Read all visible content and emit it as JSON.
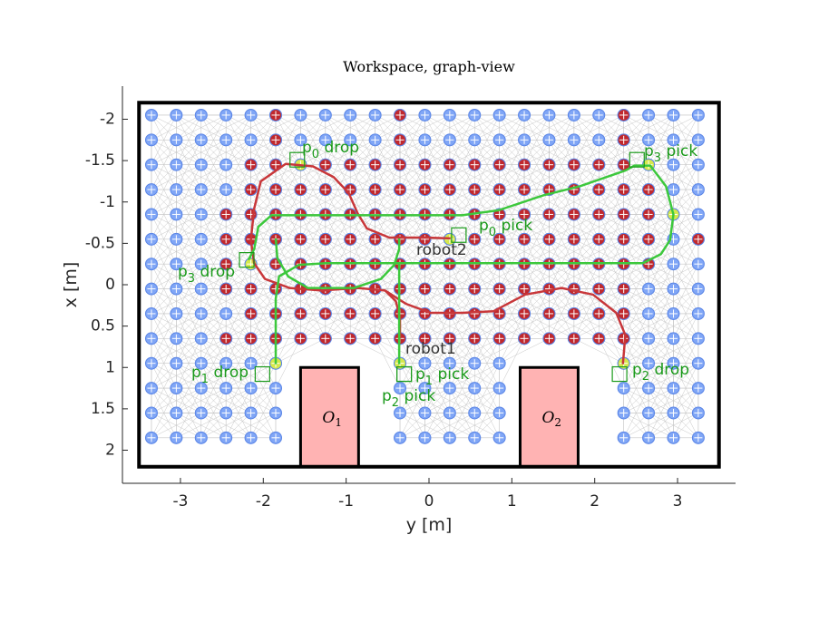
{
  "chart_data": {
    "type": "graph-map",
    "title": "Workspace, graph-view",
    "x_label": "y [m]",
    "y_label": "x [m]",
    "xlim": [
      -3.7,
      3.7
    ],
    "ylim": [
      -2.4,
      2.4
    ],
    "y_reversed": true,
    "xticks": [
      -3,
      -2,
      -1,
      0,
      1,
      2,
      3
    ],
    "yticks": [
      -2,
      -1.5,
      -1,
      -0.5,
      0,
      0.5,
      1,
      1.5,
      2
    ],
    "node_color": "#80a6f6",
    "marked_color": "#c0282d",
    "start_color": "#d6e84c",
    "boundary": {
      "y": [
        -3.5,
        3.5
      ],
      "x": [
        -2.2,
        2.2
      ]
    },
    "obstacles": [
      {
        "base": "O",
        "sub": "1",
        "y": [
          -1.55,
          -0.85
        ],
        "x": [
          1.0,
          2.2
        ]
      },
      {
        "base": "O",
        "sub": "2",
        "y": [
          1.1,
          1.8
        ],
        "x": [
          1.0,
          2.2
        ]
      }
    ],
    "node_rows": [
      {
        "x": -2.05,
        "y": [
          -3.35,
          -3.05,
          -2.75,
          -2.45,
          -2.15,
          -1.85,
          -1.55,
          -1.25,
          -0.95,
          -0.65,
          -0.35,
          -0.05,
          0.25,
          0.55,
          0.85,
          1.15,
          1.45,
          1.75,
          2.05,
          2.35,
          2.65,
          2.95,
          3.25
        ]
      },
      {
        "x": -1.75,
        "y": [
          -3.35,
          -3.05,
          -2.75,
          -2.45,
          -2.15,
          -1.85,
          -1.55,
          -1.25,
          -0.95,
          -0.65,
          -0.35,
          -0.05,
          0.25,
          0.55,
          0.85,
          1.15,
          1.45,
          1.75,
          2.05,
          2.35,
          2.65,
          2.95,
          3.25
        ]
      },
      {
        "x": -1.45,
        "y": [
          -3.35,
          -3.05,
          -2.75,
          -2.45,
          -2.15,
          -1.85,
          -1.55,
          -1.25,
          -0.95,
          -0.65,
          -0.35,
          -0.05,
          0.25,
          0.55,
          0.85,
          1.15,
          1.45,
          1.75,
          2.05,
          2.35,
          2.65,
          2.95,
          3.25
        ]
      },
      {
        "x": -1.15,
        "y": [
          -3.35,
          -3.05,
          -2.75,
          -2.45,
          -2.15,
          -1.85,
          -1.55,
          -1.25,
          -0.95,
          -0.65,
          -0.35,
          -0.05,
          0.25,
          0.55,
          0.85,
          1.15,
          1.45,
          1.75,
          2.05,
          2.35,
          2.65,
          2.95,
          3.25
        ]
      },
      {
        "x": -0.85,
        "y": [
          -3.35,
          -3.05,
          -2.75,
          -2.45,
          -2.15,
          -1.85,
          -1.55,
          -1.25,
          -0.95,
          -0.65,
          -0.35,
          -0.05,
          0.25,
          0.55,
          0.85,
          1.15,
          1.45,
          1.75,
          2.05,
          2.35,
          2.65,
          2.95,
          3.25
        ]
      },
      {
        "x": -0.55,
        "y": [
          -3.35,
          -3.05,
          -2.75,
          -2.45,
          -2.15,
          -1.85,
          -1.55,
          -1.25,
          -0.95,
          -0.65,
          -0.35,
          -0.05,
          0.25,
          0.55,
          0.85,
          1.15,
          1.45,
          1.75,
          2.05,
          2.35,
          2.65,
          2.95,
          3.25
        ]
      },
      {
        "x": -0.25,
        "y": [
          -3.35,
          -3.05,
          -2.75,
          -2.45,
          -2.15,
          -1.85,
          -1.55,
          -1.25,
          -0.95,
          -0.65,
          -0.35,
          -0.05,
          0.25,
          0.55,
          0.85,
          1.15,
          1.45,
          1.75,
          2.05,
          2.35,
          2.65,
          2.95,
          3.25
        ]
      },
      {
        "x": 0.05,
        "y": [
          -3.35,
          -3.05,
          -2.75,
          -2.45,
          -2.15,
          -1.85,
          -1.55,
          -1.25,
          -0.95,
          -0.65,
          -0.35,
          -0.05,
          0.25,
          0.55,
          0.85,
          1.15,
          1.45,
          1.75,
          2.05,
          2.35,
          2.65,
          2.95,
          3.25
        ]
      },
      {
        "x": 0.35,
        "y": [
          -3.35,
          -3.05,
          -2.75,
          -2.45,
          -2.15,
          -1.85,
          -1.55,
          -1.25,
          -0.95,
          -0.65,
          -0.35,
          -0.05,
          0.25,
          0.55,
          0.85,
          1.15,
          1.45,
          1.75,
          2.05,
          2.35,
          2.65,
          2.95,
          3.25
        ]
      },
      {
        "x": 0.65,
        "y": [
          -3.35,
          -3.05,
          -2.75,
          -2.45,
          -2.15,
          -1.85,
          -1.55,
          -1.25,
          -0.95,
          -0.65,
          -0.35,
          -0.05,
          0.25,
          0.55,
          0.85,
          1.15,
          1.45,
          1.75,
          2.05,
          2.35,
          2.65,
          2.95,
          3.25
        ]
      },
      {
        "x": 0.95,
        "y": [
          -3.35,
          -3.05,
          -2.75,
          -2.45,
          -2.15,
          -1.85,
          -0.35,
          -0.05,
          0.25,
          0.55,
          0.85,
          2.35,
          2.65,
          2.95,
          3.25
        ]
      },
      {
        "x": 1.25,
        "y": [
          -3.35,
          -3.05,
          -2.75,
          -2.45,
          -2.15,
          -1.85,
          -0.35,
          -0.05,
          0.25,
          0.55,
          0.85,
          2.35,
          2.65,
          2.95,
          3.25
        ]
      },
      {
        "x": 1.55,
        "y": [
          -3.35,
          -3.05,
          -2.75,
          -2.45,
          -2.15,
          -1.85,
          -0.35,
          -0.05,
          0.25,
          0.55,
          0.85,
          2.35,
          2.65,
          2.95,
          3.25
        ]
      },
      {
        "x": 1.85,
        "y": [
          -3.35,
          -3.05,
          -2.75,
          -2.45,
          -2.15,
          -1.85,
          -0.35,
          -0.05,
          0.25,
          0.55,
          0.85,
          2.35,
          2.65,
          2.95,
          3.25
        ]
      }
    ],
    "marked_rows": [
      {
        "x": -2.05,
        "y": [
          -1.85,
          -0.35,
          2.35
        ]
      },
      {
        "x": -1.75,
        "y": [
          -1.85,
          -0.35,
          2.35
        ]
      },
      {
        "x": -1.45,
        "y": [
          -2.15,
          -1.85,
          -1.25,
          -0.95,
          -0.65,
          -0.35,
          -0.05,
          0.25,
          0.55,
          0.85,
          1.15,
          1.45,
          1.75,
          2.05,
          2.35
        ]
      },
      {
        "x": -1.15,
        "y": [
          -2.15,
          -1.85,
          -1.55,
          -1.25,
          -0.95,
          -0.65,
          -0.35,
          -0.05,
          0.25,
          0.55,
          0.85,
          1.15,
          1.45,
          1.75,
          2.05,
          2.35,
          2.65
        ]
      },
      {
        "x": -0.85,
        "y": [
          -2.45,
          -2.15,
          -1.85,
          -1.55,
          -1.25,
          -0.95,
          -0.65,
          -0.35,
          -0.05,
          0.25,
          0.55,
          0.85,
          1.15,
          1.45,
          1.75,
          2.05,
          2.35,
          2.65
        ]
      },
      {
        "x": -0.55,
        "y": [
          -2.45,
          -2.15,
          -1.85,
          -1.55,
          -1.25,
          -0.95,
          -0.65,
          -0.35,
          -0.05,
          0.55,
          0.85,
          1.15,
          1.45,
          1.75,
          2.05,
          2.35,
          2.65,
          3.25
        ]
      },
      {
        "x": -0.25,
        "y": [
          -2.45,
          -1.85,
          -1.55,
          -1.25,
          -0.95,
          -0.65,
          -0.35,
          -0.05,
          0.25,
          0.55,
          0.85,
          1.15,
          1.45,
          1.75,
          2.05,
          2.35,
          2.65
        ]
      },
      {
        "x": 0.05,
        "y": [
          -2.45,
          -2.15,
          -1.85,
          -1.55,
          -1.25,
          -0.95,
          -0.65,
          -0.35,
          -0.05,
          0.25,
          0.55,
          0.85,
          1.15,
          1.45,
          1.75,
          2.05,
          2.35
        ]
      },
      {
        "x": 0.35,
        "y": [
          -2.15,
          -1.85,
          -1.55,
          -1.25,
          -0.95,
          -0.65,
          -0.35,
          -0.05,
          0.25,
          0.55,
          0.85,
          1.15,
          1.45,
          1.75,
          2.05,
          2.35
        ]
      },
      {
        "x": 0.65,
        "y": [
          -2.45,
          -2.15,
          -1.85,
          -1.55,
          -1.25,
          -0.95,
          -0.65,
          -0.35,
          -0.05,
          0.25,
          0.55,
          0.85,
          1.15,
          1.45,
          1.75,
          2.05,
          2.35
        ]
      }
    ],
    "start_nodes": {
      "y": [
        -1.85,
        -0.35,
        2.35,
        0.25,
        2.95,
        2.65,
        -2.15,
        -1.55
      ],
      "x": [
        0.95,
        0.95,
        0.95,
        -0.55,
        -0.85,
        -1.45,
        -0.25,
        -1.45
      ]
    },
    "paths": [
      {
        "color": "#c8373a",
        "y": [
          0.26,
          -0.04,
          -0.48,
          -0.75,
          -0.86,
          -0.97,
          -1.15,
          -1.4,
          -1.73,
          -2.03,
          -2.11,
          -2.15,
          -2.11,
          -1.98,
          -1.68,
          -1.3,
          -0.86,
          -0.53,
          -0.28,
          0.02,
          0.4,
          0.78,
          1.16,
          1.6,
          1.98,
          2.26,
          2.37,
          2.34
        ],
        "x": [
          -0.56,
          -0.57,
          -0.57,
          -0.68,
          -0.86,
          -1.11,
          -1.3,
          -1.43,
          -1.46,
          -1.25,
          -0.92,
          -0.54,
          -0.26,
          -0.07,
          0.04,
          0.07,
          0.04,
          0.07,
          0.23,
          0.34,
          0.34,
          0.32,
          0.12,
          0.04,
          0.12,
          0.34,
          0.61,
          0.96
        ]
      },
      {
        "color": "#c8373a",
        "y": [
          -0.53,
          -0.4,
          -0.35,
          -0.35
        ],
        "x": [
          0.07,
          0.2,
          0.4,
          0.65
        ]
      },
      {
        "color": "#3cc83c",
        "y": [
          -1.85,
          -1.85,
          -1.81,
          -1.57,
          -1.24,
          2.58,
          2.8,
          2.91,
          2.95,
          2.86,
          2.67,
          2.48,
          2.37,
          1.82,
          1.38,
          0.84,
          0.4,
          -1.9,
          -2.06,
          -2.11,
          -2.18
        ],
        "x": [
          0.96,
          0.17,
          -0.1,
          -0.24,
          -0.26,
          -0.26,
          -0.37,
          -0.54,
          -0.85,
          -1.19,
          -1.44,
          -1.44,
          -1.38,
          -1.19,
          -1.08,
          -0.9,
          -0.84,
          -0.84,
          -0.7,
          -0.43,
          -0.3
        ]
      },
      {
        "color": "#3cc83c",
        "y": [
          -1.85,
          -1.83,
          -1.7,
          -1.46,
          -0.91,
          -0.58,
          -0.42,
          -0.36,
          -0.36
        ],
        "x": [
          -0.56,
          -0.32,
          -0.1,
          0.04,
          0.04,
          -0.07,
          -0.24,
          -0.43,
          -0.56
        ]
      },
      {
        "color": "#3cc83c",
        "y": [
          -0.36,
          -0.36
        ],
        "x": [
          -0.26,
          0.96
        ]
      }
    ],
    "annotation_color": "#1a9a1a",
    "annotations": [
      {
        "base": "p",
        "sub": "0",
        "rest": " drop",
        "marker": [
          -1.59,
          -1.51
        ]
      },
      {
        "base": "p",
        "sub": "0",
        "rest": " pick",
        "marker": [
          0.36,
          -0.6
        ]
      },
      {
        "base": "p",
        "sub": "3",
        "rest": " pick",
        "marker": [
          2.51,
          -1.51
        ]
      },
      {
        "base": "p",
        "sub": "3",
        "rest": " drop",
        "marker": [
          -2.2,
          -0.3
        ]
      },
      {
        "base": "p",
        "sub": "1",
        "rest": " drop",
        "marker": [
          -2.01,
          1.08
        ]
      },
      {
        "base": "p",
        "sub": "1",
        "rest": " pick",
        "marker": [
          -0.3,
          1.08
        ]
      },
      {
        "base": "p",
        "sub": "2",
        "rest": " pick",
        "marker": [
          -0.3,
          1.08
        ]
      },
      {
        "base": "p",
        "sub": "2",
        "rest": " drop",
        "marker": [
          2.3,
          1.08
        ]
      }
    ],
    "robots": [
      "robot2",
      "robot1"
    ]
  }
}
